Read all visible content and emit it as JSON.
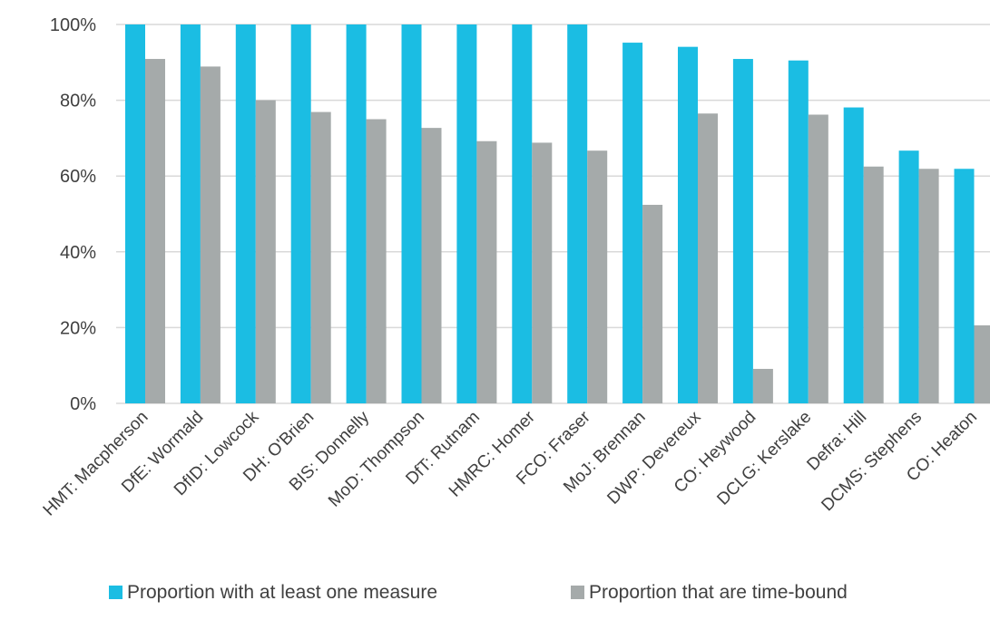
{
  "chart_data": {
    "type": "bar",
    "categories": [
      "HMT: Macpherson",
      "DfE: Wormald",
      "DfID: Lowcock",
      "DH: O'Brien",
      "BIS: Donnelly",
      "MoD: Thompson",
      "DfT: Rutnam",
      "HMRC: Homer",
      "FCO: Fraser",
      "MoJ: Brennan",
      "DWP: Devereux",
      "CO: Heywood",
      "DCLG: Kerslake",
      "Defra: Hill",
      "DCMS: Stephens",
      "CO: Heaton"
    ],
    "series": [
      {
        "name": "Proportion with at least one measure",
        "color": "#1bbde3",
        "values": [
          100,
          100,
          100,
          100,
          100,
          100,
          100,
          100,
          100,
          95.2,
          94.1,
          90.9,
          90.5,
          78.1,
          66.7,
          61.9
        ]
      },
      {
        "name": "Proportion that are time-bound",
        "color": "#a5aaaa",
        "values": [
          90.9,
          88.9,
          80.0,
          76.9,
          75.0,
          72.7,
          69.2,
          68.8,
          66.7,
          52.4,
          76.5,
          9.1,
          76.2,
          62.5,
          61.9,
          20.6
        ]
      }
    ],
    "y_ticks": [
      "0%",
      "20%",
      "40%",
      "60%",
      "80%",
      "100%"
    ],
    "ylim": [
      0,
      100
    ],
    "grid": true,
    "legend_position": "bottom",
    "gridline_color": "#d9d9d9"
  }
}
